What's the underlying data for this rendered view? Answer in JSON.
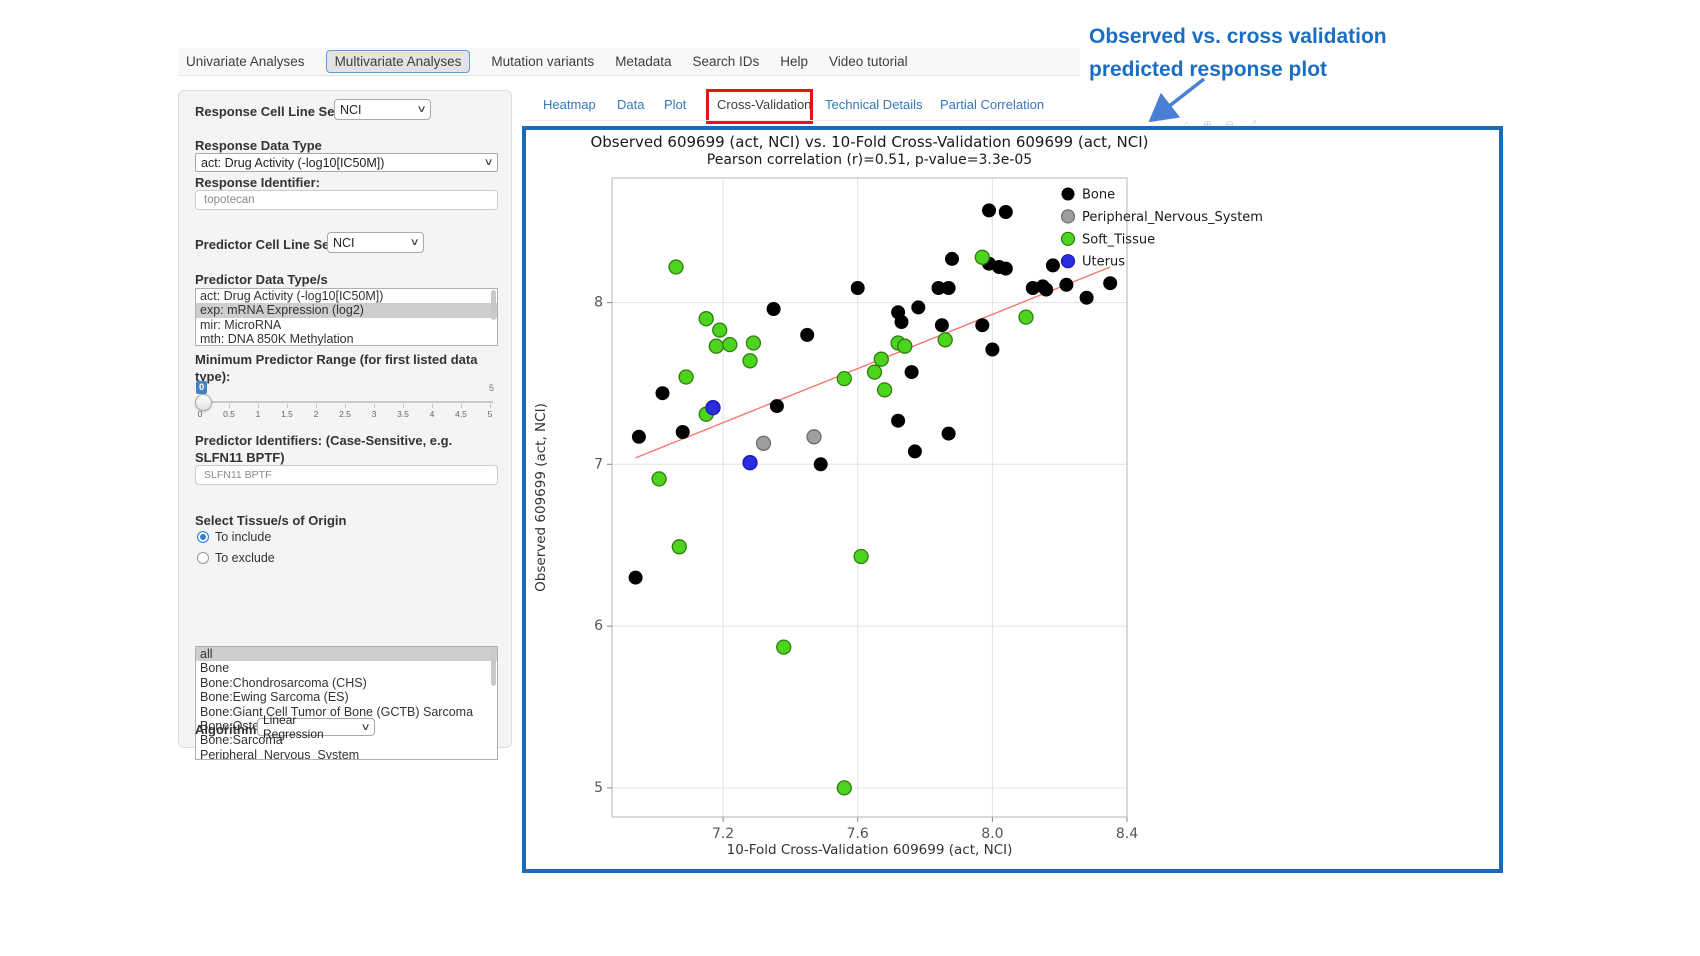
{
  "navbar": {
    "tabs": [
      {
        "label": "Univariate Analyses",
        "active": false
      },
      {
        "label": "Multivariate Analyses",
        "active": true
      },
      {
        "label": "Mutation variants",
        "active": false
      },
      {
        "label": "Metadata",
        "active": false
      },
      {
        "label": "Search IDs",
        "active": false
      },
      {
        "label": "Help",
        "active": false
      },
      {
        "label": "Video tutorial",
        "active": false
      }
    ]
  },
  "subtabs": {
    "items": [
      {
        "label": "Heatmap",
        "active": false
      },
      {
        "label": "Data",
        "active": false
      },
      {
        "label": "Plot",
        "active": false
      },
      {
        "label": "Cross-Validation",
        "active": true,
        "highlighted": true
      },
      {
        "label": "Technical Details",
        "active": false
      },
      {
        "label": "Partial Correlation",
        "active": false
      }
    ],
    "highlight_color": "#e8150d"
  },
  "icons": {
    "chevron_down": "∨",
    "modebar_hint": "⌂ ⊕ ⊖ ⤢"
  },
  "sidebar": {
    "response_cell_line_set": {
      "label": "Response Cell Line Set",
      "value": "NCI"
    },
    "response_data_type": {
      "label": "Response Data Type",
      "value": "act: Drug Activity (-log10[IC50M])"
    },
    "response_identifier": {
      "label": "Response Identifier:",
      "value": "topotecan"
    },
    "predictor_cell_line_set": {
      "label": "Predictor Cell Line Set",
      "value": "NCI"
    },
    "predictor_data_types": {
      "label": "Predictor Data Type/s",
      "options": [
        "act: Drug Activity (-log10[IC50M])",
        "exp: mRNA Expression (log2)",
        "mir: MicroRNA",
        "mth: DNA 850K Methylation"
      ],
      "selected_index": 1
    },
    "min_predictor_range": {
      "label": "Minimum Predictor Range (for first listed data type):",
      "value": "0",
      "max_label": "5",
      "ticks": [
        "0",
        "0.5",
        "1",
        "1.5",
        "2",
        "2.5",
        "3",
        "3.5",
        "4",
        "4.5",
        "5"
      ]
    },
    "predictor_identifiers": {
      "label": "Predictor Identifiers: (Case-Sensitive, e.g. SLFN11 BPTF)",
      "value": "SLFN11 BPTF"
    },
    "tissue_origin": {
      "label": "Select Tissue/s of Origin",
      "radios": [
        {
          "label": "To include",
          "checked": true
        },
        {
          "label": "To exclude",
          "checked": false
        }
      ],
      "options": [
        "all",
        "Bone",
        "Bone:Chondrosarcoma (CHS)",
        "Bone:Ewing Sarcoma (ES)",
        "Bone:Giant Cell Tumor of Bone (GCTB) Sarcoma",
        "Bone:Osteosarcoma (OS)",
        "Bone:Sarcoma",
        "Peripheral_Nervous_System"
      ],
      "selected_index": 0
    },
    "algorithm": {
      "label": "Algorithm",
      "value": "Linear Regression"
    }
  },
  "annotation": {
    "line1": "Observed vs. cross validation",
    "line2": "predicted response plot",
    "color": "#1b6ec2"
  },
  "panel_border_color": "#1a6ab5",
  "chart_data": {
    "type": "scatter",
    "title": "Observed 609699 (act, NCI) vs. 10-Fold Cross-Validation 609699 (act, NCI)",
    "subtitle": "Pearson correlation (r)=0.51, p-value=3.3e-05",
    "xlabel": "10-Fold Cross-Validation 609699 (act, NCI)",
    "ylabel": "Observed 609699 (act, NCI)",
    "xlim": [
      6.87,
      8.4
    ],
    "ylim": [
      4.82,
      8.77
    ],
    "xticks": [
      7.2,
      7.6,
      8.0,
      8.4
    ],
    "yticks": [
      5,
      6,
      7,
      8
    ],
    "grid": true,
    "legend_position": "right",
    "trend_line": {
      "color": "#f8766d",
      "x1": 6.94,
      "y1": 7.04,
      "x2": 8.35,
      "y2": 8.22
    },
    "series": [
      {
        "name": "Bone",
        "color": "#000000",
        "stroke": "#000000",
        "points": [
          [
            7.6,
            8.09
          ],
          [
            7.35,
            7.96
          ],
          [
            7.45,
            7.8
          ],
          [
            7.02,
            7.44
          ],
          [
            6.95,
            7.17
          ],
          [
            7.08,
            7.2
          ],
          [
            7.36,
            7.36
          ],
          [
            7.49,
            7.0
          ],
          [
            7.72,
            7.94
          ],
          [
            7.73,
            7.88
          ],
          [
            7.76,
            7.57
          ],
          [
            7.78,
            7.97
          ],
          [
            7.85,
            7.86
          ],
          [
            7.84,
            8.09
          ],
          [
            7.87,
            8.09
          ],
          [
            7.88,
            8.27
          ],
          [
            7.99,
            8.57
          ],
          [
            8.04,
            8.56
          ],
          [
            7.99,
            8.24
          ],
          [
            8.02,
            8.22
          ],
          [
            8.04,
            8.21
          ],
          [
            7.97,
            7.86
          ],
          [
            8.0,
            7.71
          ],
          [
            7.72,
            7.27
          ],
          [
            7.87,
            7.19
          ],
          [
            7.77,
            7.08
          ],
          [
            8.18,
            8.23
          ],
          [
            8.12,
            8.09
          ],
          [
            8.15,
            8.1
          ],
          [
            8.16,
            8.08
          ],
          [
            8.22,
            8.11
          ],
          [
            8.28,
            8.03
          ],
          [
            8.35,
            8.12
          ],
          [
            6.94,
            6.3
          ]
        ]
      },
      {
        "name": "Peripheral_Nervous_System",
        "color": "#9e9e9e",
        "stroke": "#6e6e6e",
        "points": [
          [
            7.32,
            7.13
          ],
          [
            7.47,
            7.17
          ]
        ]
      },
      {
        "name": "Soft_Tissue",
        "color": "#4cd41f",
        "stroke": "#2f7d0d",
        "points": [
          [
            7.06,
            8.22
          ],
          [
            7.15,
            7.9
          ],
          [
            7.19,
            7.83
          ],
          [
            7.18,
            7.73
          ],
          [
            7.22,
            7.74
          ],
          [
            7.29,
            7.75
          ],
          [
            7.28,
            7.64
          ],
          [
            7.09,
            7.54
          ],
          [
            7.15,
            7.31
          ],
          [
            7.01,
            6.91
          ],
          [
            7.56,
            7.53
          ],
          [
            7.65,
            7.57
          ],
          [
            7.67,
            7.65
          ],
          [
            7.72,
            7.75
          ],
          [
            7.74,
            7.73
          ],
          [
            7.68,
            7.46
          ],
          [
            7.86,
            7.77
          ],
          [
            7.97,
            8.28
          ],
          [
            8.1,
            7.91
          ],
          [
            7.07,
            6.49
          ],
          [
            7.38,
            5.87
          ],
          [
            7.61,
            6.43
          ],
          [
            7.56,
            5.0
          ]
        ]
      },
      {
        "name": "Uterus",
        "color": "#2b2bdf",
        "stroke": "#1a1ab8",
        "points": [
          [
            7.17,
            7.35
          ],
          [
            7.28,
            7.01
          ]
        ]
      }
    ]
  }
}
